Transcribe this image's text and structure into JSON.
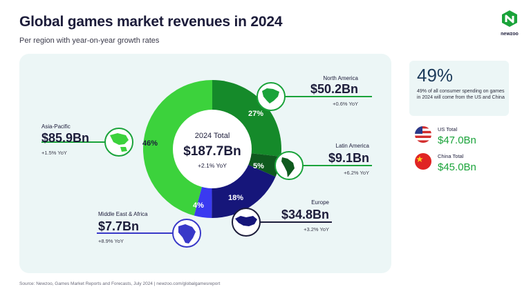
{
  "header": {
    "title": "Global games market revenues in 2024",
    "subtitle": "Per region with year-on-year growth rates"
  },
  "logo": {
    "text": "newzoo"
  },
  "chart_data": {
    "type": "pie",
    "title": "Global games market revenues in 2024",
    "subtitle": "Per region with year-on-year growth rates",
    "center": {
      "label": "2024 Total",
      "value": "$187.7Bn",
      "growth": "+2.1% YoY"
    },
    "slices": [
      {
        "name": "North America",
        "value": 50.2,
        "value_label": "$50.2Bn",
        "percent": "27%",
        "growth": "+0.6% YoY",
        "color": "#158a2a"
      },
      {
        "name": "Latin America",
        "value": 9.1,
        "value_label": "$9.1Bn",
        "percent": "5%",
        "growth": "+6.2% YoY",
        "color": "#0f5a1e"
      },
      {
        "name": "Europe",
        "value": 34.8,
        "value_label": "$34.8Bn",
        "percent": "18%",
        "growth": "+3.2% YoY",
        "color": "#16167a"
      },
      {
        "name": "Middle East & Africa",
        "value": 7.7,
        "value_label": "$7.7Bn",
        "percent": "4%",
        "growth": "+8.9% YoY",
        "color": "#3a3af0"
      },
      {
        "name": "Asia-Pacific",
        "value": 85.9,
        "value_label": "$85.9Bn",
        "percent": "46%",
        "growth": "+1.5% YoY",
        "color": "#3cd23c"
      }
    ],
    "colors": {
      "callout_green": "#1aa33a",
      "callout_blue": "#3838c8",
      "dark": "#1c1c3a"
    }
  },
  "side_stats": {
    "share_percent": "49%",
    "share_text": "49% of all consumer spending on games in 2024 will come from the US and China",
    "us": {
      "label": "US Total",
      "value": "$47.0Bn"
    },
    "china": {
      "label": "China Total",
      "value": "$45.0Bn"
    }
  },
  "footer": {
    "source": "Source: Newzoo, Games Market Reports and Forecasts, July 2024  |  newzoo.com/globalgamesreport"
  }
}
